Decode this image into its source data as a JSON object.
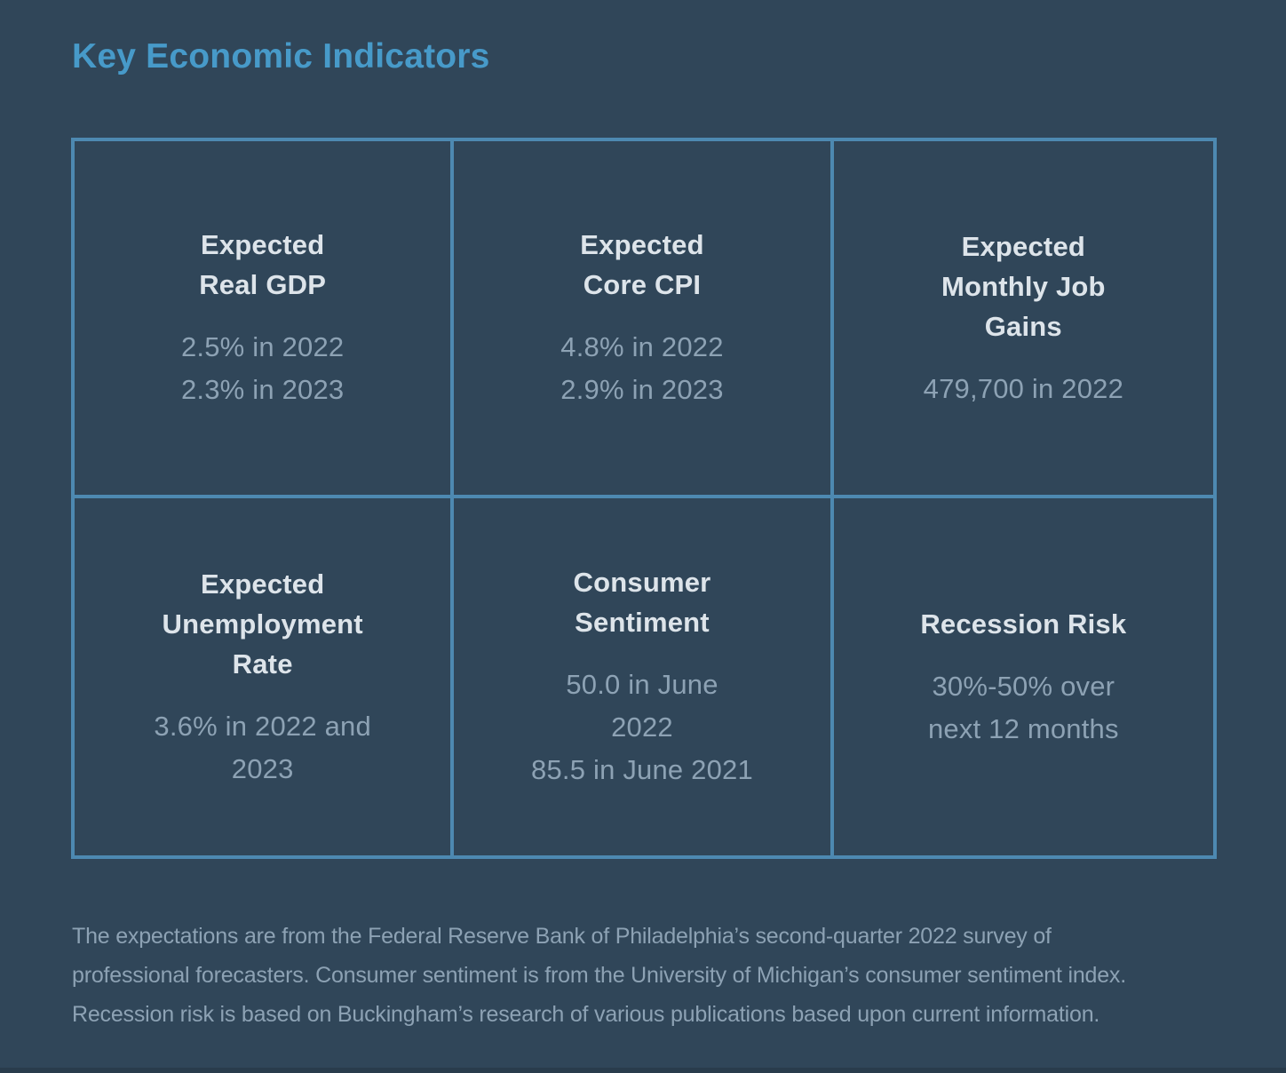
{
  "page": {
    "title": "Key Economic Indicators"
  },
  "colors": {
    "background": "#304659",
    "accent_blue": "#479ac9",
    "table_border": "#4d89b1",
    "heading_text": "#dde4ea",
    "value_text": "#8da2b4",
    "footnote_text": "#8da2b4"
  },
  "indicators": [
    {
      "id": "expected-real-gdp",
      "heading": "Expected Real GDP",
      "heading_lines": [
        "Expected",
        "Real GDP"
      ],
      "value_lines": [
        "2.5% in 2022",
        "2.3% in 2023"
      ]
    },
    {
      "id": "expected-core-cpi",
      "heading": "Expected Core CPI",
      "heading_lines": [
        "Expected",
        "Core CPI"
      ],
      "value_lines": [
        "4.8% in 2022",
        "2.9% in 2023"
      ]
    },
    {
      "id": "expected-monthly-job-gains",
      "heading": "Expected Monthly Job Gains",
      "heading_lines": [
        "Expected",
        "Monthly Job",
        "Gains"
      ],
      "value_lines": [
        "479,700 in 2022"
      ]
    },
    {
      "id": "expected-unemployment-rate",
      "heading": "Expected Unemployment Rate",
      "heading_lines": [
        "Expected",
        "Unemployment",
        "Rate"
      ],
      "value_lines": [
        "3.6% in 2022 and",
        "2023"
      ]
    },
    {
      "id": "consumer-sentiment",
      "heading": "Consumer Sentiment",
      "heading_lines": [
        "Consumer",
        "Sentiment"
      ],
      "value_lines": [
        "50.0 in June",
        "2022",
        "85.5 in June 2021"
      ]
    },
    {
      "id": "recession-risk",
      "heading": "Recession Risk",
      "heading_lines": [
        "Recession Risk"
      ],
      "value_lines": [
        "30%-50% over",
        "next 12 months"
      ]
    }
  ],
  "footnote": {
    "lines": [
      "The expectations are from the Federal Reserve Bank of Philadelphia’s second-quarter 2022 survey of",
      "professional forecasters. Consumer sentiment is from the University of Michigan’s consumer sentiment index.",
      "Recession risk is based on Buckingham’s research of various publications based upon current information."
    ]
  },
  "chart_data": {
    "type": "table",
    "title": "Key Economic Indicators",
    "layout": "2 rows x 3 columns, light blue grid on dark navy background",
    "cells": [
      {
        "row": 1,
        "col": 1,
        "label": "Expected Real GDP",
        "values": [
          "2.5% in 2022",
          "2.3% in 2023"
        ]
      },
      {
        "row": 1,
        "col": 2,
        "label": "Expected Core CPI",
        "values": [
          "4.8% in 2022",
          "2.9% in 2023"
        ]
      },
      {
        "row": 1,
        "col": 3,
        "label": "Expected Monthly Job Gains",
        "values": [
          "479,700 in 2022"
        ]
      },
      {
        "row": 2,
        "col": 1,
        "label": "Expected Unemployment Rate",
        "values": [
          "3.6% in 2022 and 2023"
        ]
      },
      {
        "row": 2,
        "col": 2,
        "label": "Consumer Sentiment",
        "values": [
          "50.0 in June 2022",
          "85.5 in June 2021"
        ]
      },
      {
        "row": 2,
        "col": 3,
        "label": "Recession Risk",
        "values": [
          "30%-50% over next 12 months"
        ]
      }
    ],
    "footnote": "The expectations are from the Federal Reserve Bank of Philadelphia’s second-quarter 2022 survey of professional forecasters. Consumer sentiment is from the University of Michigan’s consumer sentiment index. Recession risk is based on Buckingham’s research of various publications based upon current information."
  }
}
